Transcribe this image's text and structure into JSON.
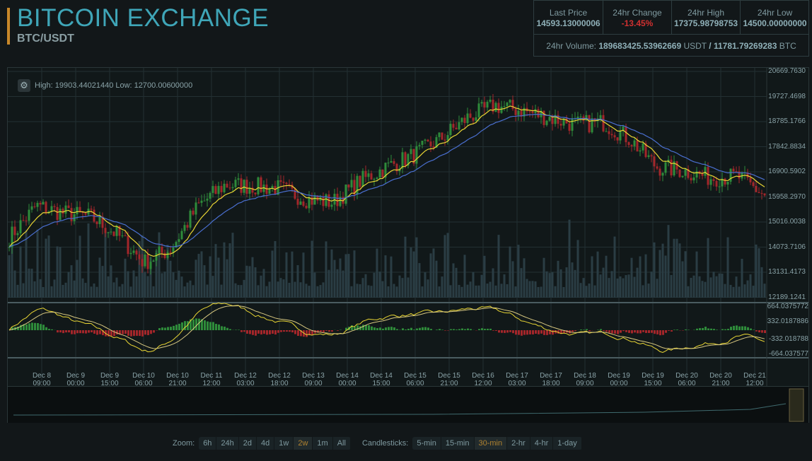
{
  "header": {
    "title": "BITCOIN EXCHANGE",
    "pair": "BTC/USDT"
  },
  "stats": {
    "last_price_label": "Last Price",
    "last_price": "14593.13000006",
    "change_label": "24hr Change",
    "change": "-13.45%",
    "high_label": "24hr High",
    "high": "17375.98798753",
    "low_label": "24hr Low",
    "low": "14500.00000000",
    "volume_label": "24hr Volume:",
    "volume_usdt": "189683425.53962669",
    "usdt": "USDT",
    "sep": "/",
    "volume_btc": "11781.79269283",
    "btc": "BTC"
  },
  "chart": {
    "range_text": "High: 19903.44021440  Low: 12700.00600000",
    "y_ticks": [
      "20669.7630",
      "19727.4698",
      "18785.1766",
      "17842.8834",
      "16900.5902",
      "15958.2970",
      "15016.0038",
      "14073.7106",
      "13131.4173",
      "12189.1241"
    ],
    "macd_ticks": [
      "664.0375772",
      "332.0187886",
      "-332.018788",
      "-664.037577"
    ],
    "x_ticks": [
      [
        "Dec 8",
        "09:00"
      ],
      [
        "Dec 9",
        "00:00"
      ],
      [
        "Dec 9",
        "15:00"
      ],
      [
        "Dec 10",
        "06:00"
      ],
      [
        "Dec 10",
        "21:00"
      ],
      [
        "Dec 11",
        "12:00"
      ],
      [
        "Dec 12",
        "03:00"
      ],
      [
        "Dec 12",
        "18:00"
      ],
      [
        "Dec 13",
        "09:00"
      ],
      [
        "Dec 14",
        "00:00"
      ],
      [
        "Dec 14",
        "15:00"
      ],
      [
        "Dec 15",
        "06:00"
      ],
      [
        "Dec 15",
        "21:00"
      ],
      [
        "Dec 16",
        "12:00"
      ],
      [
        "Dec 17",
        "03:00"
      ],
      [
        "Dec 17",
        "18:00"
      ],
      [
        "Dec 18",
        "09:00"
      ],
      [
        "Dec 19",
        "00:00"
      ],
      [
        "Dec 19",
        "15:00"
      ],
      [
        "Dec 20",
        "06:00"
      ],
      [
        "Dec 20",
        "21:00"
      ],
      [
        "Dec 21",
        "12:00"
      ]
    ],
    "colors": {
      "up": "#2e8b3a",
      "down": "#a3262a",
      "ma_fast": "#e8d534",
      "ma_slow": "#4a6fd0",
      "volume": "#2a3d44"
    }
  },
  "chart_data": {
    "type": "candlestick",
    "ylim": [
      12189.1241,
      20669.763
    ],
    "approx_close_path": [
      14432,
      15627,
      15361,
      15228,
      14565,
      13503,
      14034,
      15627,
      16423,
      16370,
      16290,
      15892,
      15759,
      16555,
      17087,
      17538,
      18148,
      18944,
      19396,
      19210,
      18944,
      18679,
      18759,
      18148,
      17087,
      16954,
      16688,
      16741,
      16025
    ]
  },
  "controls": {
    "zoom_label": "Zoom:",
    "zoom": [
      "6h",
      "24h",
      "2d",
      "4d",
      "1w",
      "2w",
      "1m",
      "All"
    ],
    "zoom_selected": "2w",
    "candles_label": "Candlesticks:",
    "candles": [
      "5-min",
      "15-min",
      "30-min",
      "2-hr",
      "4-hr",
      "1-day"
    ],
    "candles_selected": "30-min"
  }
}
